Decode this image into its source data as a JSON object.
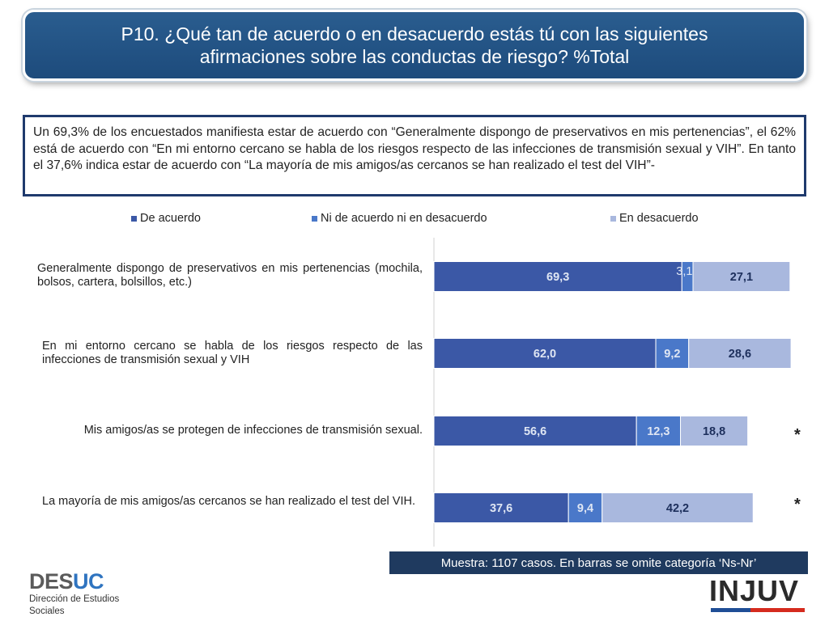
{
  "header": {
    "title": "P10. ¿Qué tan de acuerdo o en desacuerdo estás tú con las siguientes afirmaciones sobre las conductas de riesgo? %Total"
  },
  "summary": {
    "text": "Un 69,3% de los encuestados manifiesta estar de acuerdo con “Generalmente dispongo de preservativos en mis pertenencias”, el 62% está de acuerdo con “En mi entorno cercano se habla de los riesgos respecto de las infecciones de transmisión sexual y VIH”. En tanto el 37,6% indica estar de acuerdo con “La mayoría de mis amigos/as cercanos se han realizado el test del VIH”-"
  },
  "chart_data": {
    "type": "bar",
    "orientation": "horizontal",
    "stacked": true,
    "xlim": [
      0,
      100
    ],
    "categories": [
      "Generalmente dispongo de preservativos en mis pertenencias (mochila, bolsos, cartera, bolsillos, etc.)",
      "En mi entorno cercano se habla de los riesgos respecto de las infecciones de transmisión sexual y VIH",
      "Mis amigos/as se protegen de infecciones de transmisión sexual.",
      "La mayoría de mis amigos/as cercanos se han realizado el test del VIH."
    ],
    "series": [
      {
        "name": "De acuerdo",
        "color": "#3b58a6",
        "label_color": "#dfe6f3",
        "values": [
          69.3,
          62.0,
          56.6,
          37.6
        ],
        "labels": [
          "69,3",
          "62,0",
          "56,6",
          "37,6"
        ]
      },
      {
        "name": "Ni de acuerdo ni en desacuerdo",
        "color": "#4a78c9",
        "label_color": "#dfe6f3",
        "values": [
          3.1,
          9.2,
          12.3,
          9.4
        ],
        "labels": [
          "3,1",
          "9,2",
          "12,3",
          "9,4"
        ]
      },
      {
        "name": "En desacuerdo",
        "color": "#a9b8de",
        "label_color": "#1d2f5c",
        "values": [
          27.1,
          28.6,
          18.8,
          42.2
        ],
        "labels": [
          "27,1",
          "28,6",
          "18,8",
          "42,2"
        ]
      }
    ],
    "asterisks": [
      "",
      "",
      "*",
      "*"
    ],
    "legend_position": "top",
    "grid": false
  },
  "footer": {
    "sample_note": "Muestra:  1107 casos. En barras se omite categoría ‘Ns-Nr’",
    "desuc_logo": {
      "word_part1": "DES",
      "word_part2": "UC",
      "subtitle_line1": "Dirección de Estudios",
      "subtitle_line2": "Sociales"
    },
    "injuv_logo": {
      "word": "INJUV"
    }
  }
}
